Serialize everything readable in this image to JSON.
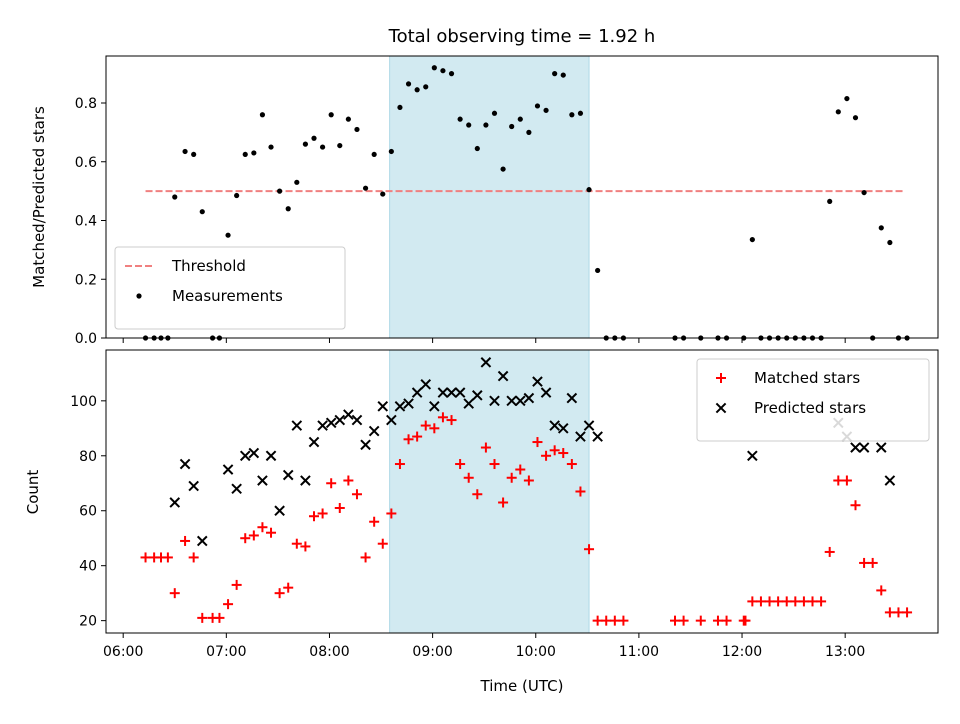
{
  "chart_data": {
    "title": "Total observing time = 1.92 h",
    "shade": {
      "start": "08:35",
      "end": "10:31",
      "color": "#add8e6"
    },
    "xlabel": "Time (UTC)",
    "xlim": [
      "05:50",
      "13:54"
    ],
    "xticks": [
      "06:00",
      "07:00",
      "08:00",
      "09:00",
      "10:00",
      "11:00",
      "12:00",
      "13:00"
    ],
    "panels": [
      {
        "type": "scatter",
        "ylabel": "Matched/Predicted stars",
        "ylim": [
          0,
          0.96
        ],
        "yticks": [
          "0.0",
          "0.2",
          "0.4",
          "0.6",
          "0.8"
        ],
        "legend_position": "lower-left",
        "threshold": {
          "name": "Threshold",
          "value": 0.5,
          "x_start": "06:13",
          "x_end": "13:35",
          "color": "#f08080"
        },
        "series": [
          {
            "name": "Measurements",
            "color": "#000000",
            "marker": "dot",
            "points": [
              [
                "06:13",
                0.0
              ],
              [
                "06:18",
                0.0
              ],
              [
                "06:22",
                0.0
              ],
              [
                "06:26",
                0.0
              ],
              [
                "06:30",
                0.48
              ],
              [
                "06:36",
                0.635
              ],
              [
                "06:41",
                0.625
              ],
              [
                "06:46",
                0.43
              ],
              [
                "06:52",
                0.0
              ],
              [
                "06:56",
                0.0
              ],
              [
                "07:01",
                0.35
              ],
              [
                "07:06",
                0.485
              ],
              [
                "07:11",
                0.625
              ],
              [
                "07:16",
                0.63
              ],
              [
                "07:21",
                0.76
              ],
              [
                "07:26",
                0.65
              ],
              [
                "07:31",
                0.5
              ],
              [
                "07:36",
                0.44
              ],
              [
                "07:41",
                0.53
              ],
              [
                "07:46",
                0.66
              ],
              [
                "07:51",
                0.68
              ],
              [
                "07:56",
                0.65
              ],
              [
                "08:01",
                0.76
              ],
              [
                "08:06",
                0.655
              ],
              [
                "08:11",
                0.745
              ],
              [
                "08:16",
                0.71
              ],
              [
                "08:21",
                0.51
              ],
              [
                "08:26",
                0.625
              ],
              [
                "08:31",
                0.49
              ],
              [
                "08:36",
                0.635
              ],
              [
                "08:41",
                0.785
              ],
              [
                "08:46",
                0.865
              ],
              [
                "08:51",
                0.845
              ],
              [
                "08:56",
                0.855
              ],
              [
                "09:01",
                0.92
              ],
              [
                "09:06",
                0.91
              ],
              [
                "09:11",
                0.9
              ],
              [
                "09:16",
                0.745
              ],
              [
                "09:21",
                0.725
              ],
              [
                "09:26",
                0.645
              ],
              [
                "09:31",
                0.725
              ],
              [
                "09:36",
                0.765
              ],
              [
                "09:41",
                0.575
              ],
              [
                "09:46",
                0.72
              ],
              [
                "09:51",
                0.745
              ],
              [
                "09:56",
                0.7
              ],
              [
                "10:01",
                0.79
              ],
              [
                "10:06",
                0.775
              ],
              [
                "10:11",
                0.9
              ],
              [
                "10:16",
                0.895
              ],
              [
                "10:21",
                0.76
              ],
              [
                "10:26",
                0.765
              ],
              [
                "10:31",
                0.505
              ],
              [
                "10:36",
                0.23
              ],
              [
                "10:41",
                0.0
              ],
              [
                "10:46",
                0.0
              ],
              [
                "10:51",
                0.0
              ],
              [
                "11:21",
                0.0
              ],
              [
                "11:26",
                0.0
              ],
              [
                "11:36",
                0.0
              ],
              [
                "11:46",
                0.0
              ],
              [
                "11:51",
                0.0
              ],
              [
                "12:01",
                0.0
              ],
              [
                "12:06",
                0.335
              ],
              [
                "12:11",
                0.0
              ],
              [
                "12:16",
                0.0
              ],
              [
                "12:21",
                0.0
              ],
              [
                "12:26",
                0.0
              ],
              [
                "12:31",
                0.0
              ],
              [
                "12:36",
                0.0
              ],
              [
                "12:41",
                0.0
              ],
              [
                "12:46",
                0.0
              ],
              [
                "12:51",
                0.465
              ],
              [
                "12:56",
                0.77
              ],
              [
                "13:01",
                0.815
              ],
              [
                "13:06",
                0.75
              ],
              [
                "13:11",
                0.495
              ],
              [
                "13:16",
                0.0
              ],
              [
                "13:21",
                0.375
              ],
              [
                "13:26",
                0.325
              ],
              [
                "13:31",
                0.0
              ],
              [
                "13:36",
                0.0
              ]
            ]
          }
        ]
      },
      {
        "type": "scatter",
        "ylabel": "Count",
        "ylim": [
          15.5,
          118.5
        ],
        "yticks": [
          "20",
          "40",
          "60",
          "80",
          "100"
        ],
        "legend_position": "upper-right",
        "series": [
          {
            "name": "Matched stars",
            "color": "#ff0000",
            "marker": "plus",
            "points": [
              [
                "06:13",
                43
              ],
              [
                "06:18",
                43
              ],
              [
                "06:22",
                43
              ],
              [
                "06:26",
                43
              ],
              [
                "06:30",
                30
              ],
              [
                "06:36",
                49
              ],
              [
                "06:41",
                43
              ],
              [
                "06:46",
                21
              ],
              [
                "06:52",
                21
              ],
              [
                "06:56",
                21
              ],
              [
                "07:01",
                26
              ],
              [
                "07:06",
                33
              ],
              [
                "07:11",
                50
              ],
              [
                "07:16",
                51
              ],
              [
                "07:21",
                54
              ],
              [
                "07:26",
                52
              ],
              [
                "07:31",
                30
              ],
              [
                "07:36",
                32
              ],
              [
                "07:41",
                48
              ],
              [
                "07:46",
                47
              ],
              [
                "07:51",
                58
              ],
              [
                "07:56",
                59
              ],
              [
                "08:01",
                70
              ],
              [
                "08:06",
                61
              ],
              [
                "08:11",
                71
              ],
              [
                "08:16",
                66
              ],
              [
                "08:21",
                43
              ],
              [
                "08:26",
                56
              ],
              [
                "08:31",
                48
              ],
              [
                "08:36",
                59
              ],
              [
                "08:41",
                77
              ],
              [
                "08:46",
                86
              ],
              [
                "08:51",
                87
              ],
              [
                "08:56",
                91
              ],
              [
                "09:01",
                90
              ],
              [
                "09:06",
                94
              ],
              [
                "09:11",
                93
              ],
              [
                "09:16",
                77
              ],
              [
                "09:21",
                72
              ],
              [
                "09:26",
                66
              ],
              [
                "09:31",
                83
              ],
              [
                "09:36",
                77
              ],
              [
                "09:41",
                63
              ],
              [
                "09:46",
                72
              ],
              [
                "09:51",
                75
              ],
              [
                "09:56",
                71
              ],
              [
                "10:01",
                85
              ],
              [
                "10:06",
                80
              ],
              [
                "10:11",
                82
              ],
              [
                "10:16",
                81
              ],
              [
                "10:21",
                77
              ],
              [
                "10:26",
                67
              ],
              [
                "10:31",
                46
              ],
              [
                "10:36",
                20
              ],
              [
                "10:41",
                20
              ],
              [
                "10:46",
                20
              ],
              [
                "10:51",
                20
              ],
              [
                "11:21",
                20
              ],
              [
                "11:26",
                20
              ],
              [
                "11:36",
                20
              ],
              [
                "11:46",
                20
              ],
              [
                "11:51",
                20
              ],
              [
                "12:01",
                20
              ],
              [
                "12:02",
                20
              ],
              [
                "12:06",
                27
              ],
              [
                "12:11",
                27
              ],
              [
                "12:16",
                27
              ],
              [
                "12:21",
                27
              ],
              [
                "12:26",
                27
              ],
              [
                "12:31",
                27
              ],
              [
                "12:36",
                27
              ],
              [
                "12:41",
                27
              ],
              [
                "12:46",
                27
              ],
              [
                "12:51",
                45
              ],
              [
                "12:56",
                71
              ],
              [
                "13:01",
                71
              ],
              [
                "13:06",
                62
              ],
              [
                "13:11",
                41
              ],
              [
                "13:16",
                41
              ],
              [
                "13:21",
                31
              ],
              [
                "13:26",
                23
              ],
              [
                "13:31",
                23
              ],
              [
                "13:36",
                23
              ]
            ]
          },
          {
            "name": "Predicted stars",
            "color": "#000000",
            "marker": "x",
            "points": [
              [
                "06:30",
                63
              ],
              [
                "06:36",
                77
              ],
              [
                "06:41",
                69
              ],
              [
                "06:46",
                49
              ],
              [
                "07:01",
                75
              ],
              [
                "07:06",
                68
              ],
              [
                "07:11",
                80
              ],
              [
                "07:16",
                81
              ],
              [
                "07:21",
                71
              ],
              [
                "07:26",
                80
              ],
              [
                "07:31",
                60
              ],
              [
                "07:36",
                73
              ],
              [
                "07:41",
                91
              ],
              [
                "07:46",
                71
              ],
              [
                "07:51",
                85
              ],
              [
                "07:56",
                91
              ],
              [
                "08:01",
                92
              ],
              [
                "08:06",
                93
              ],
              [
                "08:11",
                95
              ],
              [
                "08:16",
                93
              ],
              [
                "08:21",
                84
              ],
              [
                "08:26",
                89
              ],
              [
                "08:31",
                98
              ],
              [
                "08:36",
                93
              ],
              [
                "08:41",
                98
              ],
              [
                "08:46",
                99
              ],
              [
                "08:51",
                103
              ],
              [
                "08:56",
                106
              ],
              [
                "09:01",
                98
              ],
              [
                "09:06",
                103
              ],
              [
                "09:11",
                103
              ],
              [
                "09:16",
                103
              ],
              [
                "09:21",
                99
              ],
              [
                "09:26",
                102
              ],
              [
                "09:31",
                114
              ],
              [
                "09:36",
                100
              ],
              [
                "09:41",
                109
              ],
              [
                "09:46",
                100
              ],
              [
                "09:51",
                100
              ],
              [
                "09:56",
                101
              ],
              [
                "10:01",
                107
              ],
              [
                "10:06",
                103
              ],
              [
                "10:11",
                91
              ],
              [
                "10:16",
                90
              ],
              [
                "10:21",
                101
              ],
              [
                "10:26",
                87
              ],
              [
                "10:31",
                91
              ],
              [
                "10:36",
                87
              ],
              [
                "12:06",
                80
              ],
              [
                "12:56",
                92
              ],
              [
                "13:01",
                87
              ],
              [
                "13:06",
                83
              ],
              [
                "13:11",
                83
              ],
              [
                "13:21",
                83
              ],
              [
                "13:26",
                71
              ]
            ]
          }
        ]
      }
    ]
  }
}
